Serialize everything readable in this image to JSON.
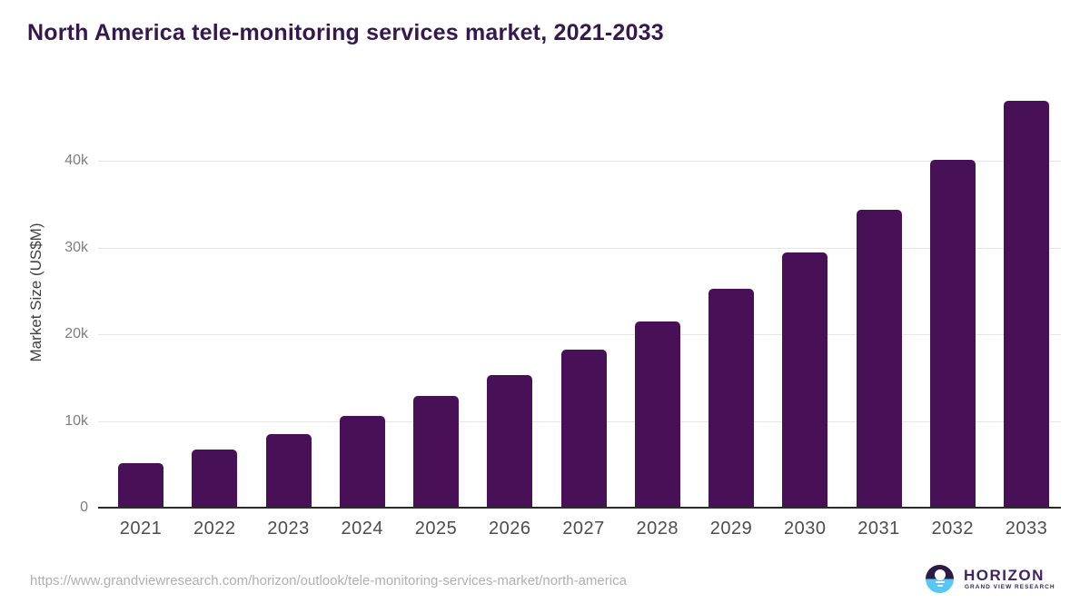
{
  "chart_data": {
    "type": "bar",
    "title": "North America tele-monitoring services market, 2021-2033",
    "categories": [
      "2021",
      "2022",
      "2023",
      "2024",
      "2025",
      "2026",
      "2027",
      "2028",
      "2029",
      "2030",
      "2031",
      "2032",
      "2033"
    ],
    "values": [
      5100,
      6700,
      8500,
      10600,
      12900,
      15300,
      18200,
      21500,
      25200,
      29400,
      34300,
      40100,
      46900
    ],
    "xlabel": "",
    "ylabel": "Market Size (US$M)",
    "ylim": [
      0,
      48000
    ],
    "yticks": [
      0,
      10000,
      20000,
      30000,
      40000
    ],
    "ytick_labels": [
      "0",
      "10k",
      "20k",
      "30k",
      "40k"
    ],
    "grid": "horizontal-only",
    "legend": "none",
    "bar_color": "#481057"
  },
  "colors": {
    "title_text": "#37184e",
    "bar": "#481057",
    "gridline": "#e7e7e7",
    "axis_line": "#2b2b2b",
    "ytick_text": "#7d7d7d",
    "xtick_text": "#4d4d4d",
    "url_text": "#b0b0b0",
    "logo_dark": "#2b1b45",
    "logo_blue": "#58c7f1",
    "logo_text": "#3d2462"
  },
  "footer": {
    "source_url": "https://www.grandviewresearch.com/horizon/outlook/tele-monitoring-services-market/north-america",
    "logo": {
      "brand": "HORIZON",
      "sub_brand": "GRAND VIEW RESEARCH"
    }
  }
}
